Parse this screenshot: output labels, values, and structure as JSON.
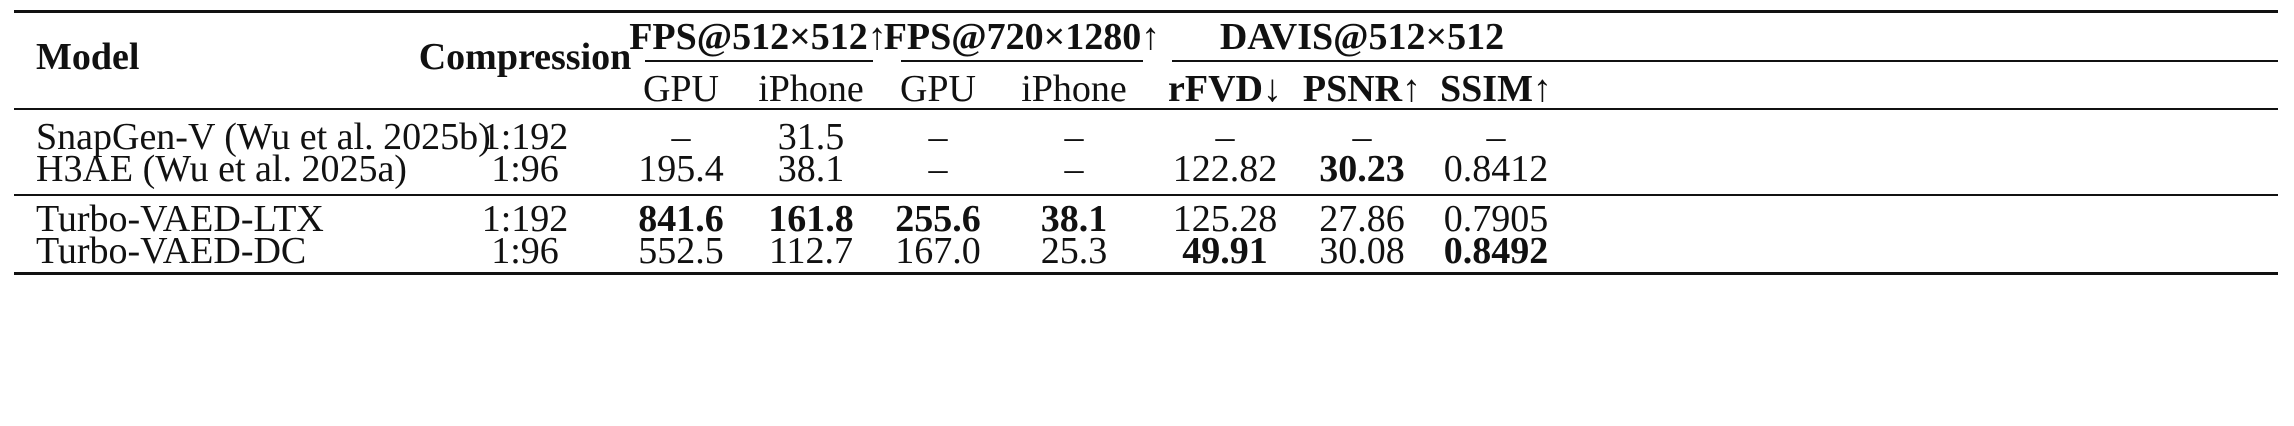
{
  "table": {
    "header": {
      "model": "Model",
      "compression": "Compression",
      "groups": {
        "fps512": "FPS@512×512↑",
        "fps720": "FPS@720×1280↑",
        "davis": "DAVIS@512×512"
      },
      "subcols": {
        "gpu_a": "GPU",
        "iphone_a": "iPhone",
        "gpu_b": "GPU",
        "iphone_b": "iPhone",
        "rfvd": "rFVD↓",
        "psnr": "PSNR↑",
        "ssim": "SSIM↑"
      }
    },
    "rows": [
      {
        "model": "SnapGen-V (Wu et al. 2025b)",
        "compression": "1:192",
        "gpu_a": "–",
        "iphone_a": "31.5",
        "gpu_b": "–",
        "iphone_b": "–",
        "rfvd": "–",
        "psnr": "–",
        "ssim": "–"
      },
      {
        "model": "H3AE (Wu et al. 2025a)",
        "compression": "1:96",
        "gpu_a": "195.4",
        "iphone_a": "38.1",
        "gpu_b": "–",
        "iphone_b": "–",
        "rfvd": "122.82",
        "psnr": "30.23",
        "ssim": "0.8412"
      },
      {
        "model": "Turbo-VAED-LTX",
        "compression": "1:192",
        "gpu_a": "841.6",
        "iphone_a": "161.8",
        "gpu_b": "255.6",
        "iphone_b": "38.1",
        "rfvd": "125.28",
        "psnr": "27.86",
        "ssim": "0.7905"
      },
      {
        "model": "Turbo-VAED-DC",
        "compression": "1:96",
        "gpu_a": "552.5",
        "iphone_a": "112.7",
        "gpu_b": "167.0",
        "iphone_b": "25.3",
        "rfvd": "49.91",
        "psnr": "30.08",
        "ssim": "0.8492"
      }
    ]
  }
}
